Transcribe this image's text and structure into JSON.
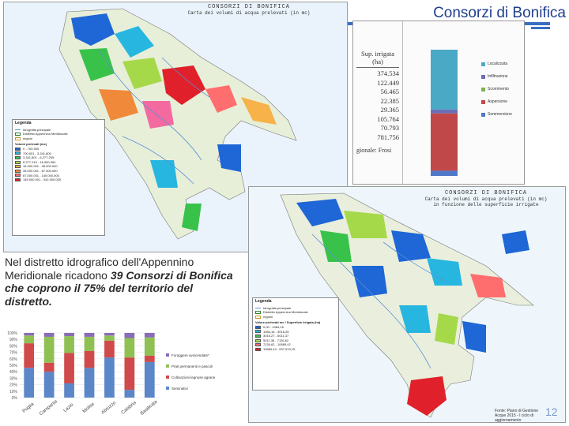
{
  "slide": {
    "title": "Consorzi di Bonifica",
    "body_prefix": "Nel distretto idrografico dell'Appennino Meridionale ricadono ",
    "body_emph": "39 Consorzi di Bonifica che coprono il 75% del territorio del distretto.",
    "page_number": "12"
  },
  "map1": {
    "header_line1": "CONSORZI DI BONIFICA",
    "header_line2": "Carta dei volumi di acqua prelevati (in mc)",
    "legend_title": "Legenda",
    "legend_items": [
      {
        "label": "Idrografia principale",
        "color": "#5b8fd6"
      },
      {
        "label": "Distretto Appennino Meridionale",
        "color": "#2e7d32"
      },
      {
        "label": "regioni",
        "color": "#c79a2e"
      }
    ],
    "legend_sub": "Volumi prelevati (mc)",
    "classes": [
      {
        "label": "0 - 700.000",
        "color": "#1f66d6"
      },
      {
        "label": "700.001 - 3.341.800",
        "color": "#27b6e0"
      },
      {
        "label": "3.341.801 - 6.277.209",
        "color": "#39c24a"
      },
      {
        "label": "6.277.210 - 16.300.000",
        "color": "#a6d94a"
      },
      {
        "label": "16.300.001 - 35.000.000",
        "color": "#f7b24a"
      },
      {
        "label": "35.000.001 - 67.000.000",
        "color": "#f08a3a"
      },
      {
        "label": "67.000.001 - 145.000.000",
        "color": "#ff6e6e"
      },
      {
        "label": "145.000.001 - 342.000.000",
        "color": "#e0202a"
      }
    ]
  },
  "map2": {
    "header_line1": "CONSORZI DI BONIFICA",
    "header_line2": "Carta dei volumi di acqua prelevati (in mc)",
    "header_line3": "in funzione delle superficie irrigate",
    "legend_title": "Legenda",
    "legend_items": [
      {
        "label": "Idrografia principale",
        "color": "#5b8fd6"
      },
      {
        "label": "Distretto Appennino Meridionale",
        "color": "#2e7d32"
      },
      {
        "label": "regioni",
        "color": "#c79a2e"
      }
    ],
    "legend_sub": "Valore prelevati mc / Superficie irrigata (ha)",
    "classes": [
      {
        "label": "0,00 - 1084,16",
        "color": "#1f66d6"
      },
      {
        "label": "1084,16 - 3016,26",
        "color": "#27b6e0"
      },
      {
        "label": "3016,27 - 5011,37",
        "color": "#39c24a"
      },
      {
        "label": "5011,38 - 7126,62",
        "color": "#a6d94a"
      },
      {
        "label": "7126,62 - 10689,42",
        "color": "#ff6e6e"
      },
      {
        "label": "10689,43 - 537.913,15",
        "color": "#e0202a"
      }
    ],
    "source": "Fonte: Piano di Gestione Acque 2015 - I ciclo di aggiornamento"
  },
  "inset_table": {
    "header": "Sup. irrigata (ha)",
    "values": [
      "374.534",
      "122.449",
      "56.465",
      "22.385",
      "29.365",
      "105.764",
      "70.793",
      "781.756"
    ],
    "footer": "gionale: Frosi",
    "legend": [
      {
        "label": "Localizzata",
        "color": "#4aa9c4"
      },
      {
        "label": "Infiltrazione",
        "color": "#6b6fb6"
      },
      {
        "label": "Scorrimento",
        "color": "#7fb24a"
      },
      {
        "label": "Aspersione",
        "color": "#c04848"
      },
      {
        "label": "Sommersione",
        "color": "#4f78c9"
      }
    ],
    "bar_segments": [
      {
        "name": "Localizzata",
        "value": 46,
        "color": "#4aa9c4"
      },
      {
        "name": "Infiltrazione",
        "value": 3,
        "color": "#6b6fb6"
      },
      {
        "name": "Aspersione",
        "value": 44,
        "color": "#c04848"
      },
      {
        "name": "Sommersione",
        "value": 4,
        "color": "#4f78c9"
      }
    ]
  },
  "chart_data": {
    "type": "bar",
    "stacked": true,
    "categories": [
      "Puglia",
      "Campania",
      "Lazio",
      "Molise",
      "Abruzzo",
      "Calabria",
      "Basilicata"
    ],
    "yticks": [
      "0%",
      "10%",
      "20%",
      "30%",
      "40%",
      "50%",
      "60%",
      "70%",
      "80%",
      "90%",
      "100%"
    ],
    "series": [
      {
        "name": "Seminativi",
        "color": "#5b86c8",
        "values": [
          46,
          40,
          22,
          46,
          62,
          12,
          55
        ]
      },
      {
        "name": "Coltivazioni legnose agrarie",
        "color": "#d0494b",
        "values": [
          38,
          14,
          47,
          26,
          26,
          50,
          10
        ]
      },
      {
        "name": "Prati permanenti e pascoli",
        "color": "#8fc152",
        "values": [
          12,
          40,
          26,
          22,
          8,
          30,
          28
        ]
      },
      {
        "name": "Foraggere avvicendate*",
        "color": "#8a6cb8",
        "values": [
          4,
          6,
          5,
          6,
          4,
          8,
          7
        ]
      }
    ],
    "legend": [
      "Foraggere avvicendate*",
      "Prati permanenti e pascoli",
      "Coltivazioni legnose agrarie",
      "Seminativi"
    ],
    "ylim": [
      0,
      100
    ]
  }
}
